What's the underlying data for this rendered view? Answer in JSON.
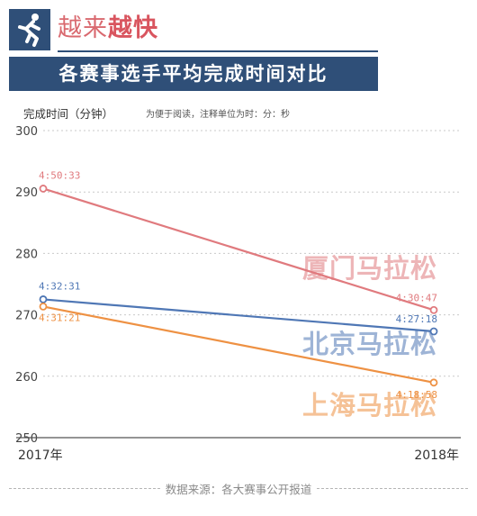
{
  "header": {
    "title_light": "越来",
    "title_bold": "越快",
    "subtitle": "各赛事选手平均完成时间对比",
    "icon": "runner-icon"
  },
  "chart_data": {
    "type": "line",
    "title": "各赛事选手平均完成时间对比",
    "ylabel": "完成时间（分钟）",
    "note": "为便于阅读，注释单位为时：分：秒",
    "categories": [
      "2017年",
      "2018年"
    ],
    "ylim": [
      250,
      300
    ],
    "yticks": [
      250,
      260,
      270,
      280,
      290,
      300
    ],
    "grid": true,
    "series": [
      {
        "name": "厦门马拉松",
        "color": "#e07a7e",
        "values": [
          290.55,
          270.78
        ],
        "labels": [
          "4:50:33",
          "4:30:47"
        ]
      },
      {
        "name": "北京马拉松",
        "color": "#4f77b5",
        "values": [
          272.52,
          267.3
        ],
        "labels": [
          "4:32:31",
          "4:27:18"
        ]
      },
      {
        "name": "上海马拉松",
        "color": "#ee9143",
        "values": [
          271.35,
          258.97
        ],
        "labels": [
          "4:31:21",
          "4:18:58"
        ]
      }
    ]
  },
  "footer": {
    "source": "数据来源：各大赛事公开报道"
  }
}
